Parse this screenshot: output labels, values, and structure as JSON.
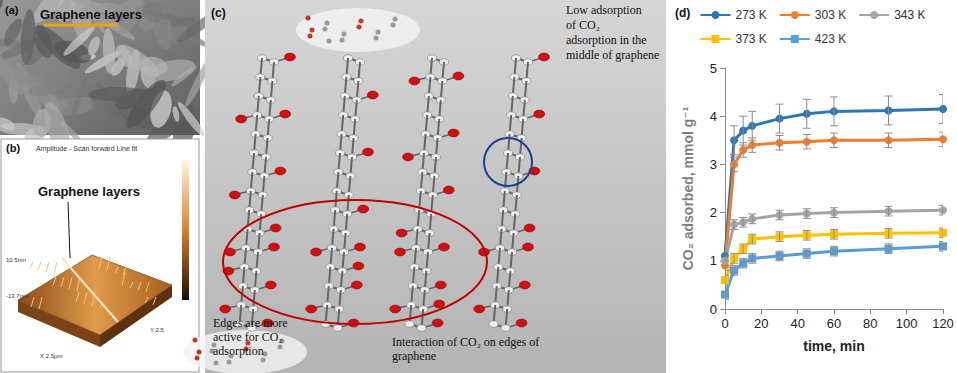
{
  "panels": {
    "a": {
      "label": "(a)",
      "text": "Graphene layers"
    },
    "b": {
      "label": "(b)",
      "header": "Amplitude - Scan forward    Line fit",
      "text": "Graphene layers",
      "axis_texts": [
        "10.5nm",
        "-13.7nm",
        "X 2.5µm",
        "Y 2.5"
      ]
    },
    "c": {
      "label": "(c)",
      "top_note": [
        "Low adsorption",
        "of CO₂",
        "adsorption in the",
        "middle of graphene"
      ],
      "edge_note": [
        "Edges are more",
        "active for CO₂",
        "adsorption"
      ],
      "bottom_note": [
        "Interaction of CO₂ on edges of",
        "graphene"
      ]
    },
    "d": {
      "label": "(d)"
    }
  },
  "chart_data": {
    "type": "line",
    "x_label": "time, min",
    "y_label": "CO₂ adsorbed, mmol g⁻¹",
    "x": [
      0,
      5,
      10,
      15,
      30,
      45,
      60,
      90,
      120
    ],
    "series": [
      {
        "name": "273 K",
        "color": "#2E75B6",
        "marker": "circle",
        "values": [
          1.1,
          3.5,
          3.7,
          3.8,
          3.95,
          4.05,
          4.1,
          4.12,
          4.15
        ],
        "errors": [
          0.1,
          0.3,
          0.3,
          0.3,
          0.3,
          0.3,
          0.3,
          0.3,
          0.3
        ]
      },
      {
        "name": "303 K",
        "color": "#ED7D31",
        "marker": "circle",
        "values": [
          0.9,
          3.0,
          3.3,
          3.4,
          3.45,
          3.47,
          3.5,
          3.5,
          3.52
        ],
        "errors": [
          0.1,
          0.15,
          0.15,
          0.15,
          0.15,
          0.15,
          0.15,
          0.15,
          0.15
        ]
      },
      {
        "name": "343 K",
        "color": "#A5A5A5",
        "marker": "circle",
        "values": [
          1.0,
          1.75,
          1.8,
          1.87,
          1.95,
          1.98,
          2.0,
          2.03,
          2.05
        ],
        "errors": [
          0.1,
          0.1,
          0.1,
          0.1,
          0.1,
          0.1,
          0.1,
          0.1,
          0.1
        ]
      },
      {
        "name": "373 K",
        "color": "#FFC000",
        "marker": "square",
        "values": [
          0.6,
          1.05,
          1.25,
          1.45,
          1.5,
          1.53,
          1.55,
          1.57,
          1.58
        ],
        "errors": [
          0.1,
          0.1,
          0.1,
          0.1,
          0.1,
          0.1,
          0.1,
          0.1,
          0.1
        ]
      },
      {
        "name": "423 K",
        "color": "#5B9BD5",
        "marker": "square",
        "values": [
          0.3,
          0.8,
          0.95,
          1.05,
          1.1,
          1.15,
          1.2,
          1.25,
          1.3
        ],
        "errors": [
          0.1,
          0.1,
          0.1,
          0.1,
          0.1,
          0.1,
          0.1,
          0.1,
          0.1
        ]
      }
    ],
    "xlim": [
      0,
      120
    ],
    "xticks": [
      0,
      20,
      40,
      60,
      80,
      100,
      120
    ],
    "ylim": [
      0,
      5
    ],
    "yticks": [
      0,
      1,
      2,
      3,
      4,
      5
    ],
    "legend": "top",
    "grid": false
  }
}
